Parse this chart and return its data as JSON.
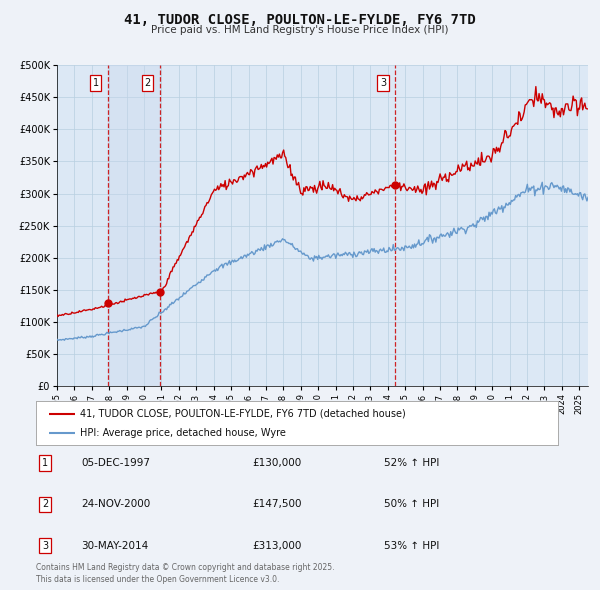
{
  "title": "41, TUDOR CLOSE, POULTON-LE-FYLDE, FY6 7TD",
  "subtitle": "Price paid vs. HM Land Registry's House Price Index (HPI)",
  "xlim": [
    1995.0,
    2025.5
  ],
  "ylim": [
    0,
    500000
  ],
  "yticks": [
    0,
    50000,
    100000,
    150000,
    200000,
    250000,
    300000,
    350000,
    400000,
    450000,
    500000
  ],
  "ytick_labels": [
    "£0",
    "£50K",
    "£100K",
    "£150K",
    "£200K",
    "£250K",
    "£300K",
    "£350K",
    "£400K",
    "£450K",
    "£500K"
  ],
  "red_line_color": "#cc0000",
  "blue_line_color": "#6699cc",
  "sale_points": [
    {
      "label": "1",
      "date_num": 1997.92,
      "price": 130000,
      "date_str": "05-DEC-1997",
      "price_str": "£130,000",
      "pct": "52% ↑ HPI"
    },
    {
      "label": "2",
      "date_num": 2000.9,
      "price": 147500,
      "date_str": "24-NOV-2000",
      "price_str": "£147,500",
      "pct": "50% ↑ HPI"
    },
    {
      "label": "3",
      "date_num": 2014.42,
      "price": 313000,
      "date_str": "30-MAY-2014",
      "price_str": "£313,000",
      "pct": "53% ↑ HPI"
    }
  ],
  "legend_label_red": "41, TUDOR CLOSE, POULTON-LE-FYLDE, FY6 7TD (detached house)",
  "legend_label_blue": "HPI: Average price, detached house, Wyre",
  "footer": "Contains HM Land Registry data © Crown copyright and database right 2025.\nThis data is licensed under the Open Government Licence v3.0.",
  "bg_color": "#eef2f8",
  "plot_bg_color": "#dce8f5",
  "grid_color": "#b8cfe0",
  "vline1_x": 1997.92,
  "vline2_x": 2000.9,
  "vline3_x": 2014.42,
  "shade1_xmin": 1997.92,
  "shade1_xmax": 2000.9
}
